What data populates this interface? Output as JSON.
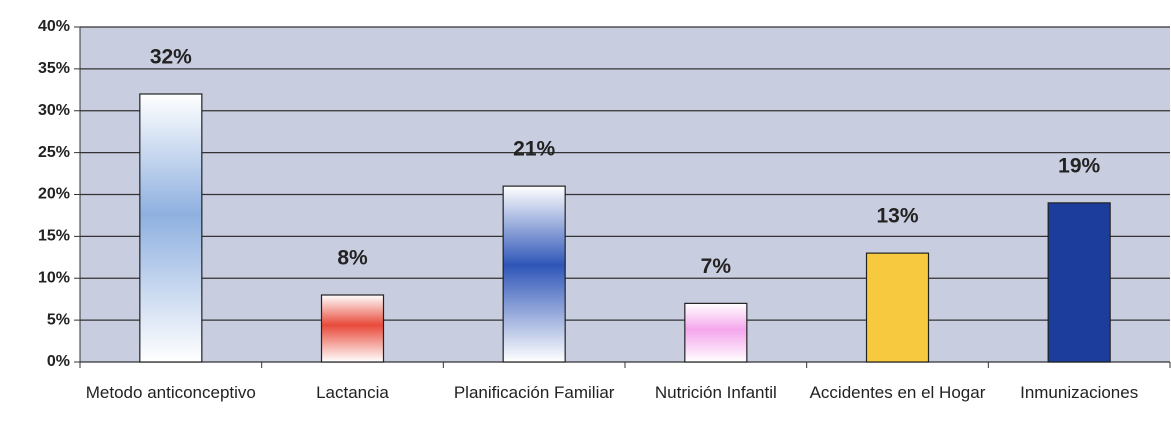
{
  "chart_data": {
    "type": "bar",
    "categories": [
      "Metodo anticonceptivo",
      "Lactancia",
      "Planificación Familiar",
      "Nutrición Infantil",
      "Accidentes en el Hogar",
      "Inmunizaciones"
    ],
    "values": [
      32,
      8,
      21,
      7,
      13,
      19
    ],
    "value_labels": [
      "32%",
      "8%",
      "21%",
      "7%",
      "13%",
      "19%"
    ],
    "colors": [
      "#8fb0e0",
      "#e84a3a",
      "#2f56b8",
      "#f4a6ec",
      "#f6c93e",
      "#1c3d9c"
    ],
    "ylim": [
      0,
      40
    ],
    "yticks": [
      {
        "value": 0,
        "label": "0%"
      },
      {
        "value": 5,
        "label": "5%"
      },
      {
        "value": 10,
        "label": "10%"
      },
      {
        "value": 15,
        "label": "15%"
      },
      {
        "value": 20,
        "label": "20%"
      },
      {
        "value": 25,
        "label": "25%"
      },
      {
        "value": 30,
        "label": "30%"
      },
      {
        "value": 35,
        "label": "35%"
      },
      {
        "value": 40,
        "label": "40%"
      }
    ],
    "grid": true
  }
}
